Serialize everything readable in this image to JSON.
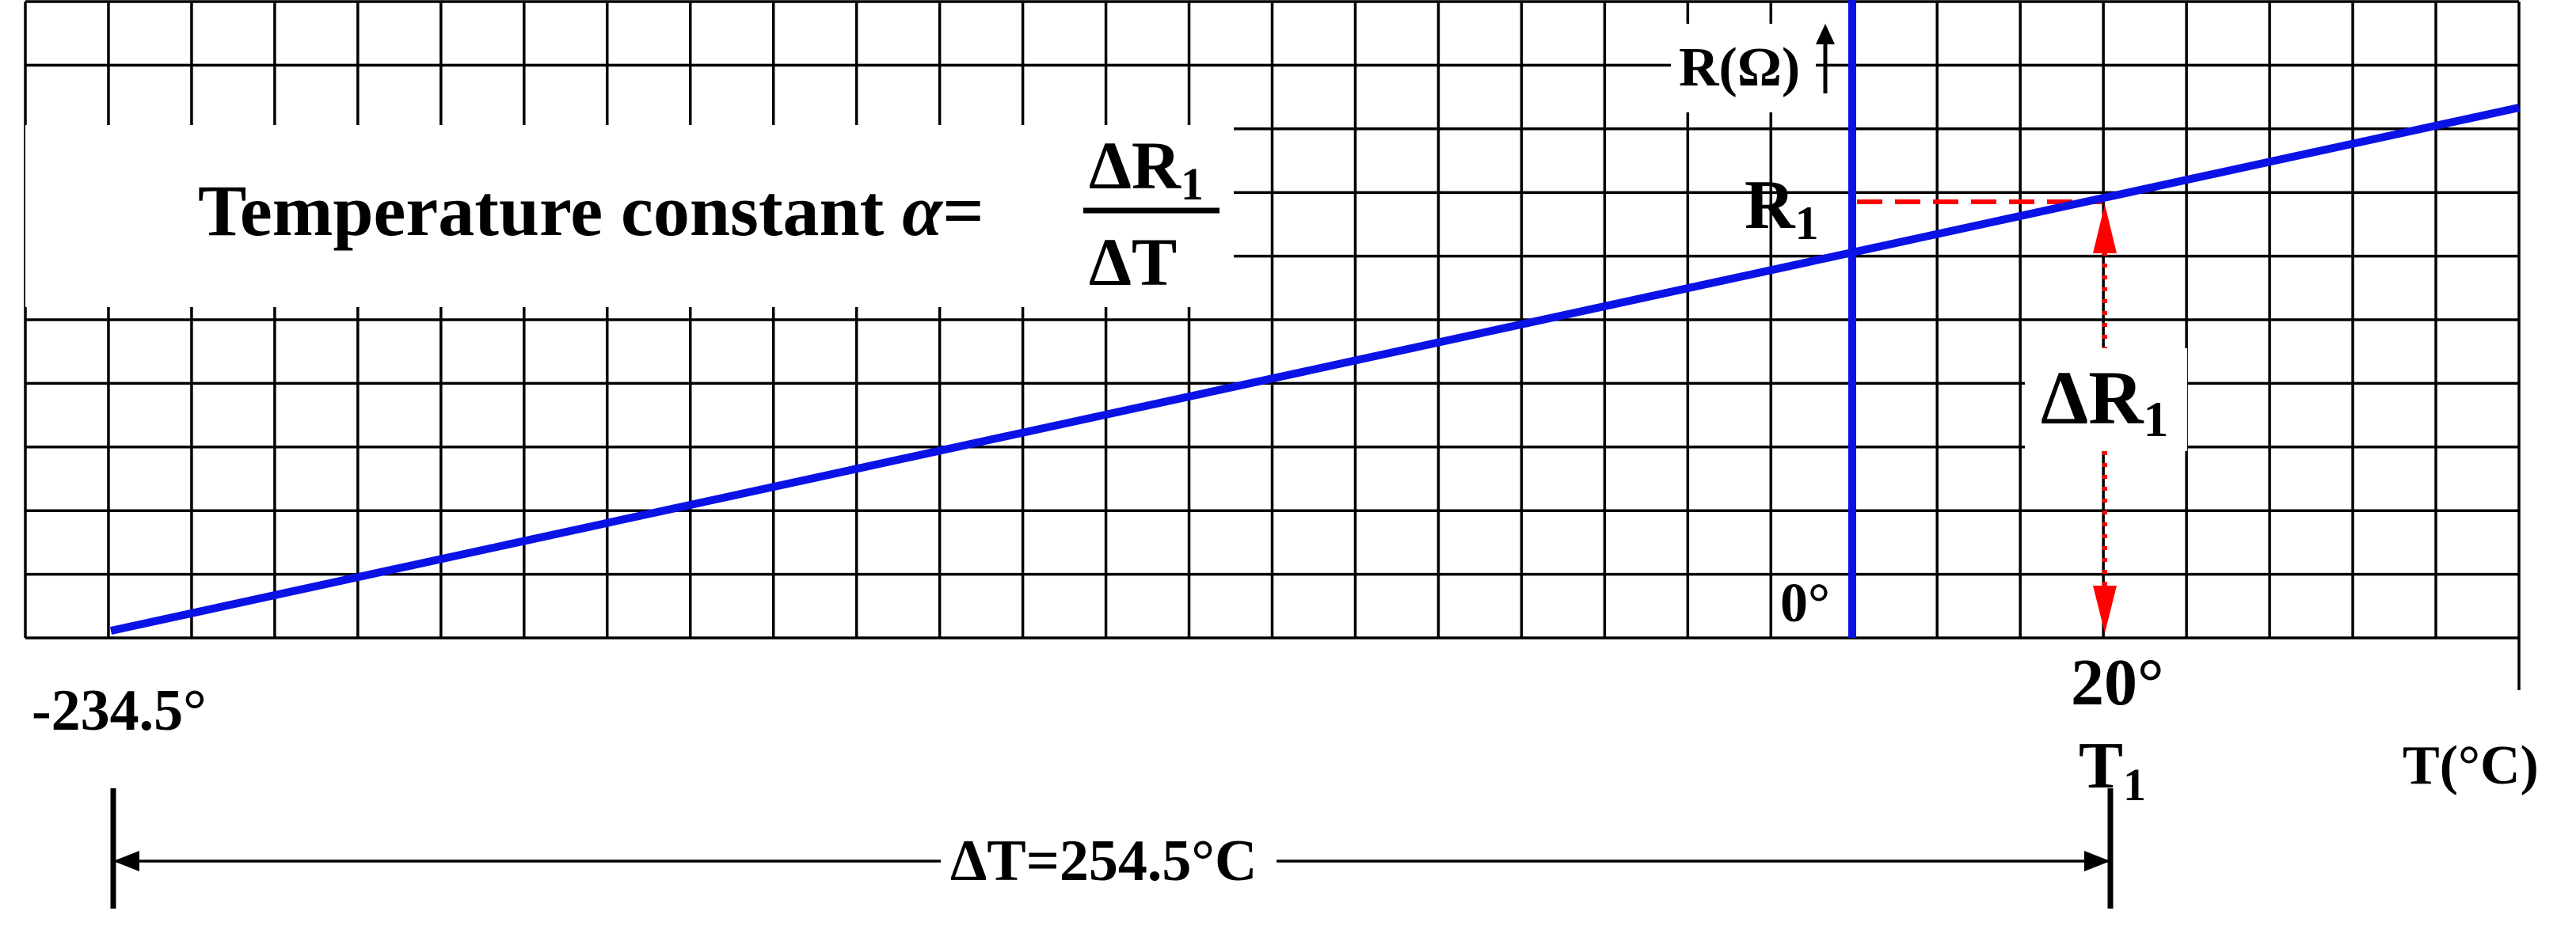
{
  "formula": {
    "lead": "Temperature constant ",
    "alpha": "α",
    "equals": "=",
    "numerator": "ΔR",
    "numerator_sub": "1",
    "denominator": "ΔT"
  },
  "axes": {
    "y_label": "R(Ω)",
    "x_label": "T(°C)"
  },
  "points": {
    "r1_label": "R",
    "r1_sub": "1",
    "delta_r_label": "ΔR",
    "delta_r_sub": "1",
    "zero_label": "0°",
    "t1_value_label": "20°",
    "t1_label": "T",
    "t1_sub": "1",
    "origin_label": "-234.5°"
  },
  "span": {
    "delta_t_label": "ΔT=254.5°C"
  },
  "colors": {
    "line": "#0a12e6",
    "axis": "#0a12e6",
    "dashed": "#ff0000",
    "grid": "#000000"
  }
}
